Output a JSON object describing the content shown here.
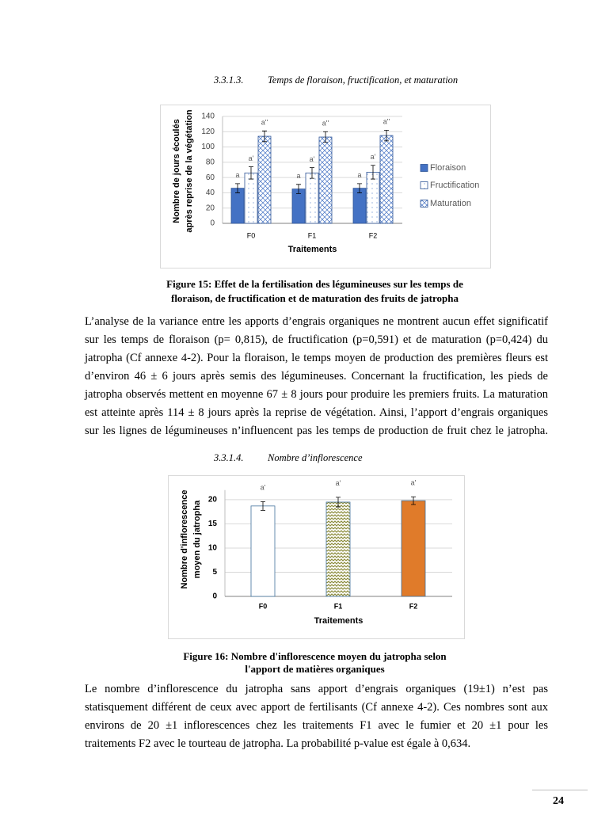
{
  "sections": [
    {
      "number": "3.3.1.3.",
      "title": "Temps de floraison, fructification, et maturation"
    },
    {
      "number": "3.3.1.4.",
      "title": "Nombre d’inflorescence"
    }
  ],
  "chart_data": [
    {
      "type": "bar",
      "categories": [
        "F0",
        "F1",
        "F2"
      ],
      "series": [
        {
          "name": "Floraison",
          "color": "#4472c4",
          "pattern": "solid",
          "values": [
            46,
            45,
            46
          ],
          "errors": [
            6,
            6,
            6
          ],
          "letters": [
            "a",
            "a",
            "a"
          ]
        },
        {
          "name": "Fructification",
          "color": "#4472c4",
          "pattern": "dots",
          "values": [
            66,
            66,
            67
          ],
          "errors": [
            8,
            7,
            9
          ],
          "letters": [
            "a'",
            "a'",
            "a'"
          ]
        },
        {
          "name": "Maturation",
          "color": "#4472c4",
          "pattern": "crosshatch",
          "values": [
            114,
            113,
            115
          ],
          "errors": [
            7,
            7,
            7
          ],
          "letters": [
            "a''",
            "a''",
            "a''"
          ]
        }
      ],
      "edgecolor": "#2f5597",
      "xlabel": "Traitements",
      "ylabel": [
        "Nombre de jours écoulés",
        "après reprise de la végétation"
      ],
      "ylim": [
        0,
        140
      ],
      "yticks": [
        0,
        20,
        40,
        60,
        80,
        100,
        120,
        140
      ],
      "grid": true,
      "legend": "right"
    },
    {
      "type": "bar",
      "categories": [
        "F0",
        "F1",
        "F2"
      ],
      "values": [
        18.7,
        19.5,
        19.8
      ],
      "errors": [
        0.9,
        1.0,
        0.8
      ],
      "letters": [
        "a'",
        "a'",
        "a'"
      ],
      "colors": [
        "#ffffff",
        "#8c8c3c",
        "#e07b2a"
      ],
      "patterns": [
        "solid",
        "zigzag",
        "solid"
      ],
      "edgecolor": "#41719c",
      "xlabel": "Traitements",
      "ylabel": [
        "Nombre d'inflorescence",
        "moyen du jatropha"
      ],
      "ylim": [
        0,
        22
      ],
      "yticks": [
        0,
        5,
        10,
        15,
        20
      ],
      "grid": true
    }
  ],
  "captions": [
    [
      "Figure 15: Effet de la fertilisation des légumineuses sur les temps de",
      "floraison, de fructification et de maturation des fruits de jatropha"
    ],
    [
      "Figure 16: Nombre d'inflorescence moyen du jatropha selon",
      "l'apport de matières organiques"
    ]
  ],
  "paragraphs": [
    [
      "L’analyse de la variance entre les apports d’engrais organiques ne montrent aucun effet significatif",
      "sur les temps de floraison (p= 0,815), de fructification (p=0,591) et de maturation (p=0,424) du",
      "jatropha (Cf annexe 4-2). Pour la floraison, le temps moyen de production des premières fleurs est",
      "d’environ 46 ± 6 jours après semis des légumineuses. Concernant la fructification, les pieds de",
      "jatropha observés mettent en moyenne 67 ± 8 jours pour produire les premiers fruits. La maturation",
      "est atteinte après 114 ± 8 jours après la reprise de végétation. Ainsi, l’apport d’engrais organiques",
      "sur les lignes de légumineuses n’influencent pas les temps de production de fruit chez le jatropha."
    ],
    [
      "Le nombre d’inflorescence du jatropha sans apport d’engrais organiques (19±1) n’est pas",
      "statisquement différent de ceux avec apport de fertilisants (Cf annexe 4-2). Ces nombres sont aux",
      "environs de 20 ±1 inflorescences chez les traitements F1 avec le fumier et 20 ±1 pour les",
      "traitements F2 avec le tourteau de jatropha. La probabilité p-value est égale à 0,634."
    ]
  ],
  "page_number": "24"
}
